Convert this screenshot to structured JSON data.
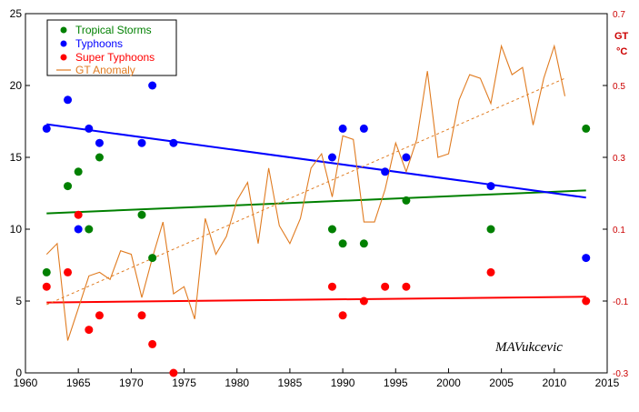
{
  "colors": {
    "tropical": "#008000",
    "typhoons": "#0000ff",
    "super": "#ff0000",
    "anomaly": "#e07b20",
    "right_axis_text": "#cc0000"
  },
  "chart_data": {
    "type": "scatter",
    "title": "",
    "xlabel": "",
    "ylabel": "",
    "y2label": "GT",
    "y2unit": "°C",
    "xlim": [
      1960,
      2015
    ],
    "ylim": [
      0,
      25
    ],
    "y2lim": [
      -0.3,
      0.7
    ],
    "x_ticks": [
      "1960",
      "1965",
      "1970",
      "1975",
      "1980",
      "1985",
      "1990",
      "1995",
      "2000",
      "2005",
      "2010",
      "2015"
    ],
    "y_ticks": [
      "0",
      "5",
      "10",
      "15",
      "20",
      "25"
    ],
    "y2_ticks": [
      "-0.3",
      "-0.1",
      "0.1",
      "0.3",
      "0.5",
      "0.7"
    ],
    "legend": {
      "placement": "top-left",
      "entries": [
        {
          "label": "Tropical Storms",
          "color": "#008000",
          "marker": "dot"
        },
        {
          "label": "Typhoons",
          "color": "#0000ff",
          "marker": "dot"
        },
        {
          "label": "Super Typhoons",
          "color": "#ff0000",
          "marker": "dot"
        },
        {
          "label": "GT Anomaly",
          "color": "#e07b20",
          "marker": "line"
        }
      ]
    },
    "series": [
      {
        "name": "Tropical Storms",
        "kind": "scatter",
        "color": "#008000",
        "points": [
          [
            1962,
            7
          ],
          [
            1964,
            13
          ],
          [
            1965,
            14
          ],
          [
            1966,
            10
          ],
          [
            1967,
            15
          ],
          [
            1971,
            11
          ],
          [
            1972,
            8
          ],
          [
            1989,
            10
          ],
          [
            1990,
            9
          ],
          [
            1992,
            9
          ],
          [
            1996,
            12
          ],
          [
            2004,
            10
          ],
          [
            2013,
            17
          ]
        ],
        "trend": [
          [
            1962,
            11.1
          ],
          [
            2013,
            12.7
          ]
        ]
      },
      {
        "name": "Typhoons",
        "kind": "scatter",
        "color": "#0000ff",
        "points": [
          [
            1962,
            17
          ],
          [
            1964,
            19
          ],
          [
            1965,
            10
          ],
          [
            1966,
            17
          ],
          [
            1967,
            16
          ],
          [
            1971,
            16
          ],
          [
            1972,
            20
          ],
          [
            1974,
            16
          ],
          [
            1989,
            15
          ],
          [
            1990,
            17
          ],
          [
            1992,
            17
          ],
          [
            1994,
            14
          ],
          [
            1996,
            15
          ],
          [
            2004,
            13
          ],
          [
            2013,
            8
          ]
        ],
        "trend": [
          [
            1962,
            17.3
          ],
          [
            2013,
            12.2
          ]
        ]
      },
      {
        "name": "Super Typhoons",
        "kind": "scatter",
        "color": "#ff0000",
        "points": [
          [
            1962,
            6
          ],
          [
            1964,
            7
          ],
          [
            1965,
            11
          ],
          [
            1966,
            3
          ],
          [
            1967,
            4
          ],
          [
            1971,
            4
          ],
          [
            1972,
            2
          ],
          [
            1974,
            0
          ],
          [
            1989,
            6
          ],
          [
            1990,
            4
          ],
          [
            1992,
            5
          ],
          [
            1994,
            6
          ],
          [
            1996,
            6
          ],
          [
            2004,
            7
          ],
          [
            2013,
            5
          ]
        ],
        "trend": [
          [
            1962,
            4.9
          ],
          [
            2013,
            5.3
          ]
        ]
      },
      {
        "name": "GT Anomaly",
        "kind": "line",
        "axis": "right",
        "color": "#e07b20",
        "x": [
          1962,
          1963,
          1964,
          1965,
          1966,
          1967,
          1968,
          1969,
          1970,
          1971,
          1972,
          1973,
          1974,
          1975,
          1976,
          1977,
          1978,
          1979,
          1980,
          1981,
          1982,
          1983,
          1984,
          1985,
          1986,
          1987,
          1988,
          1989,
          1990,
          1991,
          1992,
          1993,
          1994,
          1995,
          1996,
          1997,
          1998,
          1999,
          2000,
          2001,
          2002,
          2003,
          2004,
          2005,
          2006,
          2007,
          2008,
          2009,
          2010,
          2011
        ],
        "values": [
          0.03,
          0.06,
          -0.21,
          -0.12,
          -0.03,
          -0.02,
          -0.04,
          0.04,
          0.03,
          -0.09,
          0.02,
          0.12,
          -0.08,
          -0.06,
          -0.15,
          0.13,
          0.03,
          0.08,
          0.18,
          0.23,
          0.06,
          0.27,
          0.11,
          0.06,
          0.13,
          0.27,
          0.31,
          0.19,
          0.36,
          0.35,
          0.12,
          0.12,
          0.21,
          0.34,
          0.26,
          0.35,
          0.54,
          0.3,
          0.31,
          0.46,
          0.53,
          0.52,
          0.45,
          0.61,
          0.53,
          0.55,
          0.39,
          0.52,
          0.61,
          0.47
        ],
        "trend": [
          [
            1962,
            -0.11
          ],
          [
            2011,
            0.52
          ]
        ]
      }
    ],
    "annotations": [
      "MAVukcevic"
    ]
  }
}
